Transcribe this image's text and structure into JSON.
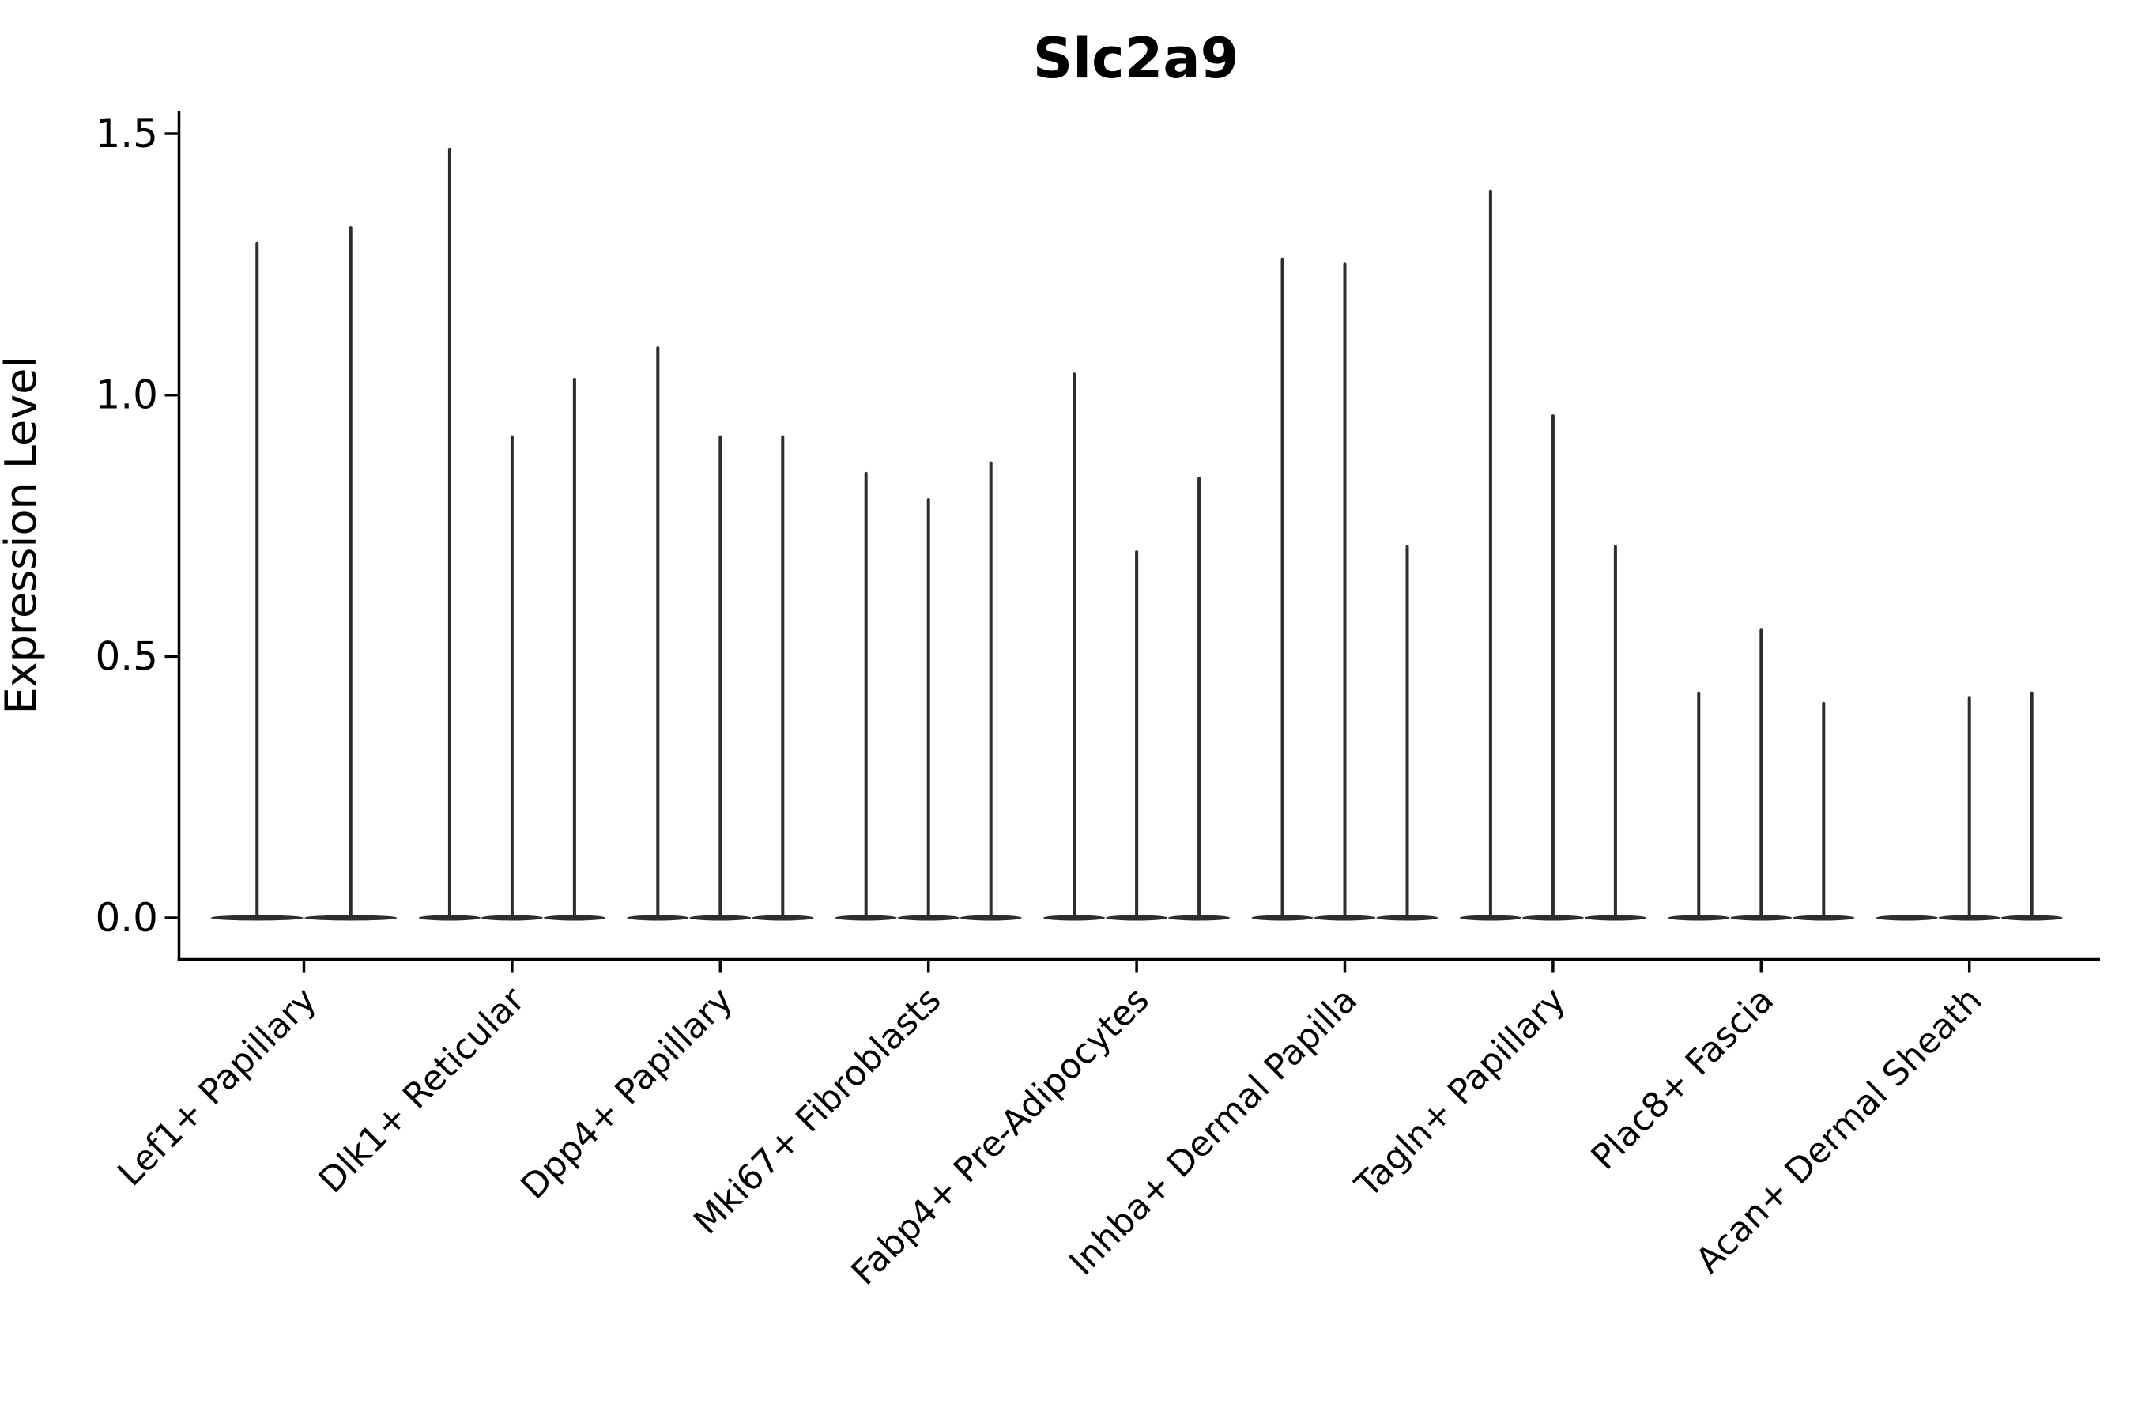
{
  "title": "Slc2a9",
  "chart_data": {
    "type": "violin",
    "title": "Slc2a9",
    "xlabel": "",
    "ylabel": "Expression Level",
    "yticks": [
      1.5,
      1.0,
      0.5,
      0.0
    ],
    "ytick_decimals": 1,
    "ylim": [
      -0.08,
      1.55
    ],
    "grid": false,
    "legend_position": "none",
    "categories": [
      "Lef1+ Papillary",
      "Dlk1+ Reticular",
      "Dpp4+ Papillary",
      "Mki67+ Fibroblasts",
      "Fabp4+ Pre-Adipocytes",
      "Inhba+ Dermal Papilla",
      "Tagln+ Papillary",
      "Plac8+ Fascia",
      "Acan+ Dermal Sheath"
    ],
    "groups": [
      {
        "label": "Lef1+ Papillary",
        "violin_maxima": [
          1.29,
          1.32
        ]
      },
      {
        "label": "Dlk1+ Reticular",
        "violin_maxima": [
          1.47,
          0.92,
          1.03
        ]
      },
      {
        "label": "Dpp4+ Papillary",
        "violin_maxima": [
          1.09,
          0.92,
          0.92
        ]
      },
      {
        "label": "Mki67+ Fibroblasts",
        "violin_maxima": [
          0.85,
          0.8,
          0.87
        ]
      },
      {
        "label": "Fabp4+ Pre-Adipocytes",
        "violin_maxima": [
          1.04,
          0.7,
          0.84
        ]
      },
      {
        "label": "Inhba+ Dermal Papilla",
        "violin_maxima": [
          1.26,
          1.25,
          0.71
        ]
      },
      {
        "label": "Tagln+ Papillary",
        "violin_maxima": [
          1.39,
          0.96,
          0.71
        ]
      },
      {
        "label": "Plac8+ Fascia",
        "violin_maxima": [
          0.43,
          0.55,
          0.41
        ]
      },
      {
        "label": "Acan+ Dermal Sheath",
        "violin_maxima": [
          0.0,
          0.42,
          0.43
        ]
      }
    ],
    "violin_shape": "spike-with-flat-base-at-zero",
    "colors": {
      "violin": "#2d2d2d",
      "axis": "#000000",
      "text": "#000000",
      "background": "#ffffff"
    }
  }
}
